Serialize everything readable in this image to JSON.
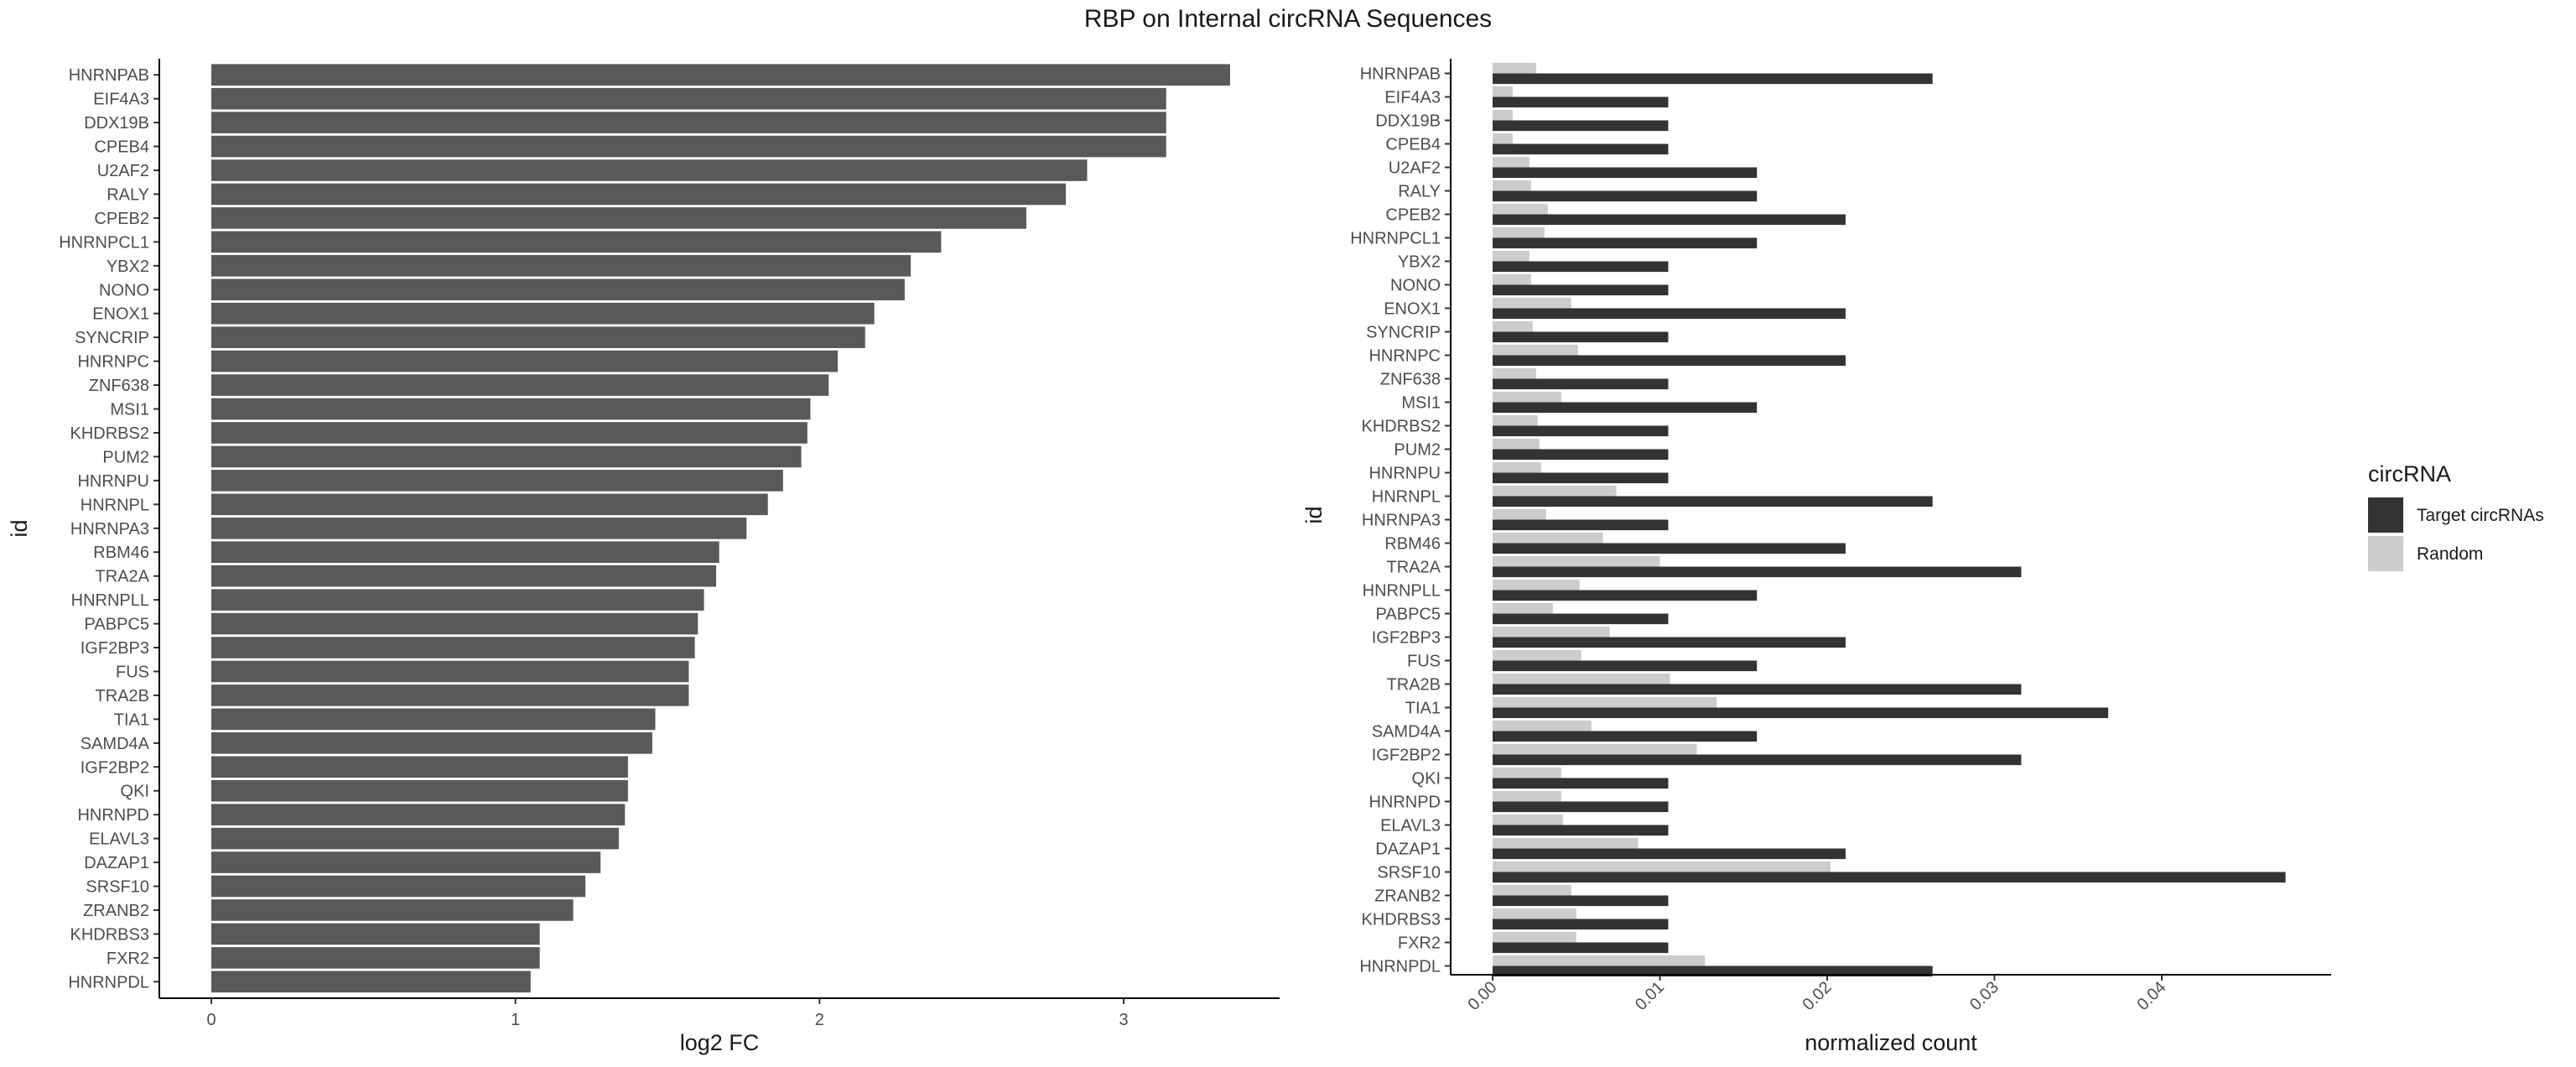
{
  "title": "RBP on Internal circRNA Sequences",
  "chart_data": [
    {
      "type": "bar",
      "orientation": "horizontal",
      "categories": [
        "HNRNPAB",
        "EIF4A3",
        "DDX19B",
        "CPEB4",
        "U2AF2",
        "RALY",
        "CPEB2",
        "HNRNPCL1",
        "YBX2",
        "NONO",
        "ENOX1",
        "SYNCRIP",
        "HNRNPC",
        "ZNF638",
        "MSI1",
        "KHDRBS2",
        "PUM2",
        "HNRNPU",
        "HNRNPL",
        "HNRNPA3",
        "RBM46",
        "TRA2A",
        "HNRNPLL",
        "PABPC5",
        "IGF2BP3",
        "FUS",
        "TRA2B",
        "TIA1",
        "SAMD4A",
        "IGF2BP2",
        "QKI",
        "HNRNPD",
        "ELAVL3",
        "DAZAP1",
        "SRSF10",
        "ZRANB2",
        "KHDRBS3",
        "FXR2",
        "HNRNPDL"
      ],
      "values": [
        3.35,
        3.14,
        3.14,
        3.14,
        2.88,
        2.81,
        2.68,
        2.4,
        2.3,
        2.28,
        2.18,
        2.15,
        2.06,
        2.03,
        1.97,
        1.96,
        1.94,
        1.88,
        1.83,
        1.76,
        1.67,
        1.66,
        1.62,
        1.6,
        1.59,
        1.57,
        1.57,
        1.46,
        1.45,
        1.37,
        1.37,
        1.36,
        1.34,
        1.28,
        1.23,
        1.19,
        1.08,
        1.08,
        1.05
      ],
      "xlabel": "log2 FC",
      "ylabel": "id",
      "xlim": [
        0,
        3.5
      ],
      "xticks": [
        "0",
        "1",
        "2",
        "3"
      ],
      "bar_color": "#595959"
    },
    {
      "type": "bar",
      "orientation": "horizontal",
      "grouped": true,
      "categories": [
        "HNRNPAB",
        "EIF4A3",
        "DDX19B",
        "CPEB4",
        "U2AF2",
        "RALY",
        "CPEB2",
        "HNRNPCL1",
        "YBX2",
        "NONO",
        "ENOX1",
        "SYNCRIP",
        "HNRNPC",
        "ZNF638",
        "MSI1",
        "KHDRBS2",
        "PUM2",
        "HNRNPU",
        "HNRNPL",
        "HNRNPA3",
        "RBM46",
        "TRA2A",
        "HNRNPLL",
        "PABPC5",
        "IGF2BP3",
        "FUS",
        "TRA2B",
        "TIA1",
        "SAMD4A",
        "IGF2BP2",
        "QKI",
        "HNRNPD",
        "ELAVL3",
        "DAZAP1",
        "SRSF10",
        "ZRANB2",
        "KHDRBS3",
        "FXR2",
        "HNRNPDL"
      ],
      "series": [
        {
          "name": "Target circRNAs",
          "color": "#333333",
          "values": [
            0.0263,
            0.0105,
            0.0105,
            0.0105,
            0.0158,
            0.0158,
            0.0211,
            0.0158,
            0.0105,
            0.0105,
            0.0211,
            0.0105,
            0.0211,
            0.0105,
            0.0158,
            0.0105,
            0.0105,
            0.0105,
            0.0263,
            0.0105,
            0.0211,
            0.0316,
            0.0158,
            0.0105,
            0.0211,
            0.0158,
            0.0316,
            0.0368,
            0.0158,
            0.0316,
            0.0105,
            0.0105,
            0.0105,
            0.0211,
            0.0474,
            0.0105,
            0.0105,
            0.0105,
            0.0263
          ]
        },
        {
          "name": "Random",
          "color": "#cccccc",
          "values": [
            0.0026,
            0.0012,
            0.0012,
            0.0012,
            0.0022,
            0.0023,
            0.0033,
            0.0031,
            0.0022,
            0.0023,
            0.0047,
            0.0024,
            0.0051,
            0.0026,
            0.0041,
            0.0027,
            0.0028,
            0.0029,
            0.0074,
            0.0032,
            0.0066,
            0.01,
            0.0052,
            0.0036,
            0.007,
            0.0053,
            0.0106,
            0.0134,
            0.0059,
            0.0122,
            0.0041,
            0.0041,
            0.0042,
            0.0087,
            0.0202,
            0.0047,
            0.005,
            0.005,
            0.0127
          ]
        }
      ],
      "xlabel": "normalized count",
      "ylabel": "id",
      "xlim": [
        0,
        0.05
      ],
      "xticks": [
        "0.00",
        "0.01",
        "0.02",
        "0.03",
        "0.04"
      ],
      "xtick_rotation": "45 degrees",
      "legend": {
        "title": "circRNA",
        "placement": "right"
      }
    }
  ]
}
